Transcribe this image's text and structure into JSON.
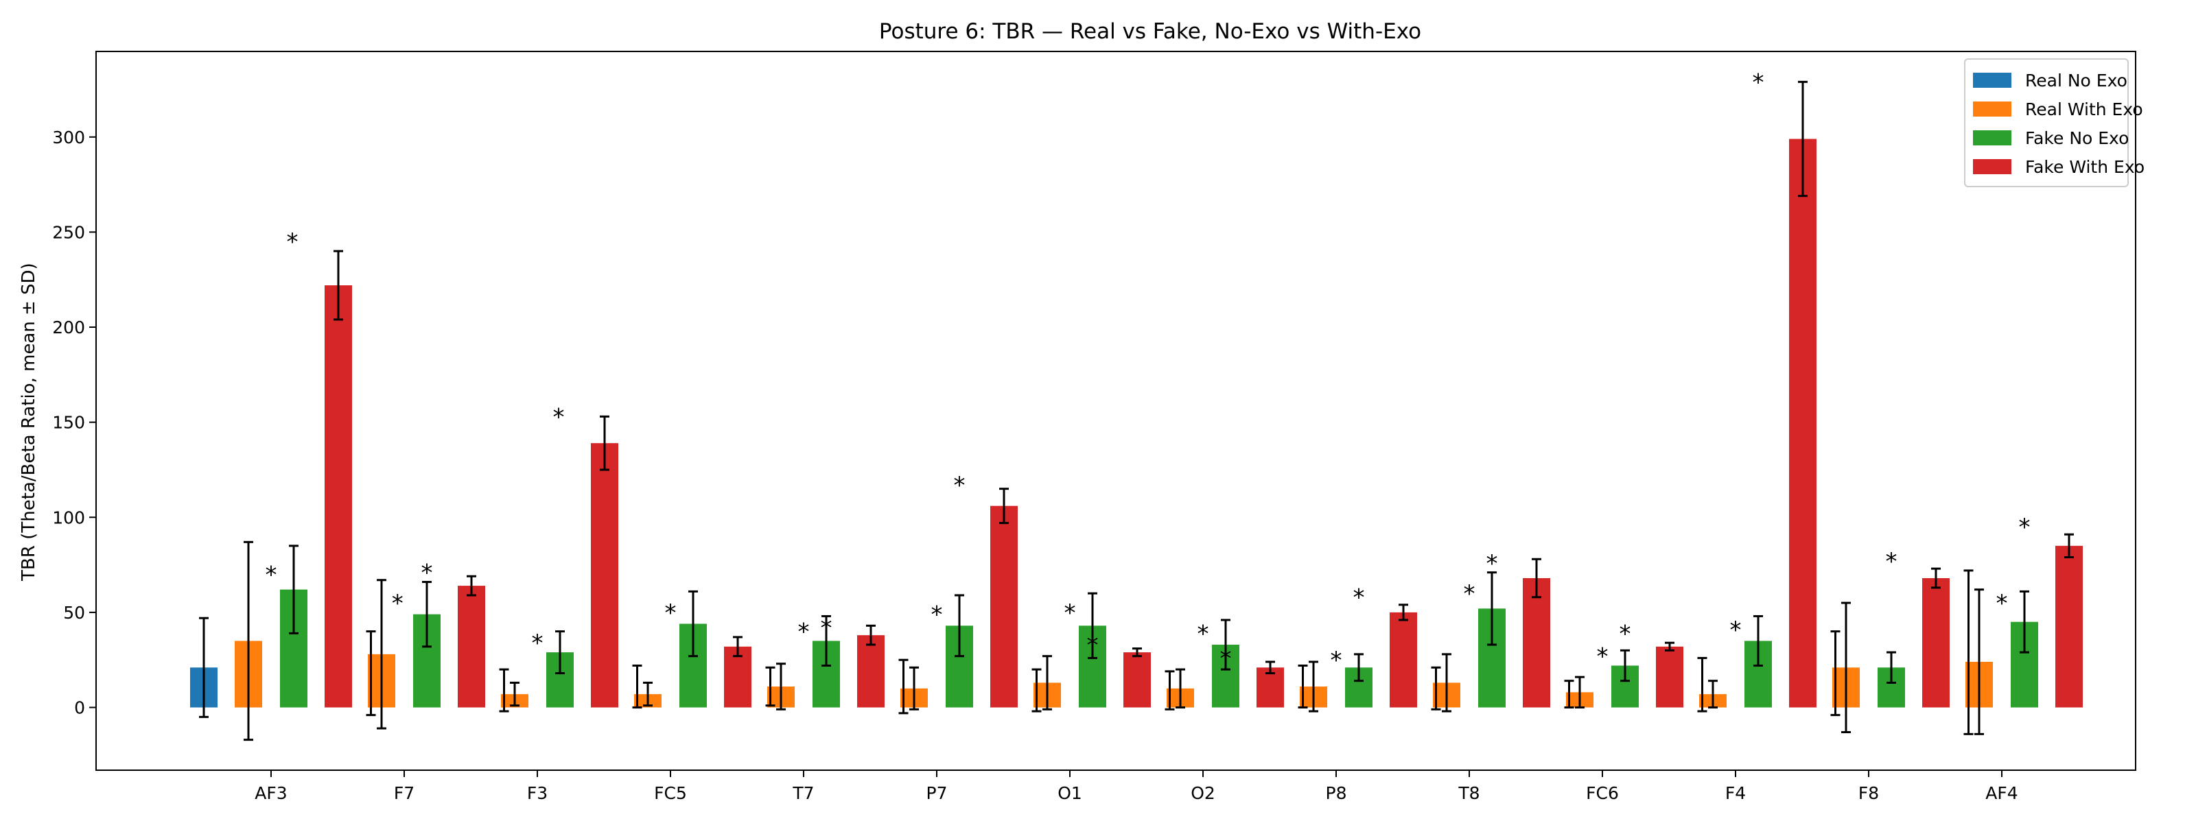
{
  "chart_data": {
    "type": "bar",
    "title": "Posture 6: TBR — Real vs Fake, No-Exo vs With-Exo",
    "xlabel": "",
    "ylabel": "TBR (Theta/Beta Ratio, mean ± SD)",
    "ylim": [
      -33,
      345
    ],
    "yticks": [
      0,
      50,
      100,
      150,
      200,
      250,
      300
    ],
    "grid": false,
    "legend_position": "top-right",
    "categories": [
      "AF3",
      "F7",
      "F3",
      "FC5",
      "T7",
      "P7",
      "O1",
      "O2",
      "P8",
      "T8",
      "FC6",
      "F4",
      "F8",
      "AF4"
    ],
    "series": [
      {
        "name": "Real No Exo",
        "color": "#1f77b4",
        "values": [
          21,
          null,
          null,
          null,
          null,
          null,
          null,
          null,
          null,
          null,
          null,
          null,
          null,
          null
        ],
        "sd": [
          26,
          null,
          null,
          null,
          null,
          null,
          null,
          null,
          null,
          null,
          null,
          null,
          null,
          null
        ]
      },
      {
        "name": "Real With Exo",
        "color": "#ff7f0e",
        "values": [
          35,
          28,
          7,
          7,
          11,
          10,
          13,
          10,
          11,
          13,
          8,
          7,
          21,
          24
        ],
        "sd": [
          52,
          39,
          6,
          6,
          12,
          11,
          14,
          10,
          13,
          15,
          8,
          7,
          34,
          38
        ]
      },
      {
        "name": "Fake No Exo",
        "color": "#2ca02c",
        "values": [
          62,
          49,
          29,
          44,
          35,
          43,
          43,
          33,
          21,
          52,
          22,
          35,
          21,
          45
        ],
        "sd": [
          23,
          17,
          11,
          17,
          13,
          16,
          17,
          13,
          7,
          19,
          8,
          13,
          8,
          16
        ]
      },
      {
        "name": "Fake With Exo",
        "color": "#d62728",
        "values": [
          222,
          64,
          139,
          32,
          38,
          106,
          29,
          21,
          50,
          68,
          32,
          299,
          68,
          85
        ],
        "sd": [
          18,
          5,
          14,
          5,
          5,
          9,
          2,
          3,
          4,
          10,
          2,
          30,
          5,
          6
        ]
      }
    ],
    "extra_errorbars": [
      {
        "x": 0.75,
        "y": 18,
        "sd": 22
      },
      {
        "x": 1.75,
        "y": 9,
        "sd": 11
      },
      {
        "x": 2.75,
        "y": 11,
        "sd": 11
      },
      {
        "x": 3.75,
        "y": 11,
        "sd": 10
      },
      {
        "x": 4.75,
        "y": 11,
        "sd": 14
      },
      {
        "x": 5.75,
        "y": 9,
        "sd": 11
      },
      {
        "x": 6.75,
        "y": 9,
        "sd": 10
      },
      {
        "x": 7.75,
        "y": 11,
        "sd": 11
      },
      {
        "x": 8.75,
        "y": 10,
        "sd": 11
      },
      {
        "x": 9.75,
        "y": 7,
        "sd": 7
      },
      {
        "x": 10.75,
        "y": 12,
        "sd": 14
      },
      {
        "x": 11.75,
        "y": 18,
        "sd": 22
      },
      {
        "x": 12.75,
        "y": 29,
        "sd": 43
      }
    ],
    "significance_marks": [
      {
        "x": 0.0,
        "y": 70,
        "label": "*"
      },
      {
        "x": 0.16,
        "y": 245,
        "label": "*"
      },
      {
        "x": 0.95,
        "y": 55,
        "label": "*"
      },
      {
        "x": 1.17,
        "y": 71,
        "label": "*"
      },
      {
        "x": 2.0,
        "y": 34,
        "label": "*"
      },
      {
        "x": 2.16,
        "y": 153,
        "label": "*"
      },
      {
        "x": 3.0,
        "y": 50,
        "label": "*"
      },
      {
        "x": 4.0,
        "y": 40,
        "label": "*"
      },
      {
        "x": 4.17,
        "y": 42,
        "label": "*"
      },
      {
        "x": 5.0,
        "y": 49,
        "label": "*"
      },
      {
        "x": 5.17,
        "y": 117,
        "label": "*"
      },
      {
        "x": 6.0,
        "y": 50,
        "label": "*"
      },
      {
        "x": 6.17,
        "y": 33,
        "label": "*"
      },
      {
        "x": 7.0,
        "y": 39,
        "label": "*"
      },
      {
        "x": 7.17,
        "y": 26,
        "label": "*"
      },
      {
        "x": 8.0,
        "y": 25,
        "label": "*"
      },
      {
        "x": 8.17,
        "y": 58,
        "label": "*"
      },
      {
        "x": 9.0,
        "y": 60,
        "label": "*"
      },
      {
        "x": 9.17,
        "y": 76,
        "label": "*"
      },
      {
        "x": 10.0,
        "y": 27,
        "label": "*"
      },
      {
        "x": 10.17,
        "y": 39,
        "label": "*"
      },
      {
        "x": 11.0,
        "y": 41,
        "label": "*"
      },
      {
        "x": 11.17,
        "y": 329,
        "label": "*"
      },
      {
        "x": 12.17,
        "y": 77,
        "label": "*"
      },
      {
        "x": 13.0,
        "y": 55,
        "label": "*"
      },
      {
        "x": 13.17,
        "y": 95,
        "label": "*"
      }
    ]
  }
}
